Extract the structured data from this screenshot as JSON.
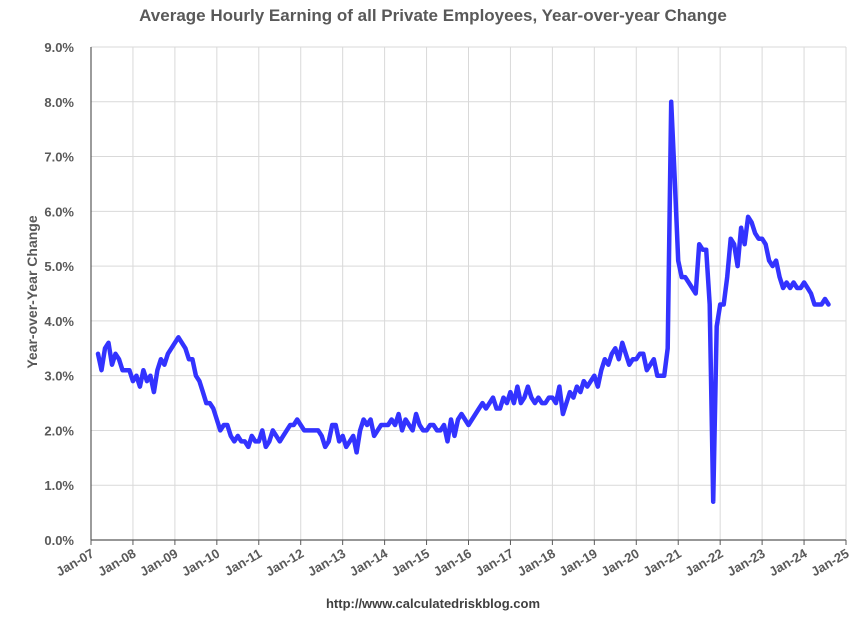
{
  "chart_data": {
    "type": "line",
    "title": "Average Hourly Earning of all Private Employees, Year-over-year Change",
    "ylabel": "Year-over-Year Change",
    "xlabel": "",
    "source": "http://www.calculatedriskblog.com",
    "x_ticks": [
      "Jan-07",
      "Jan-08",
      "Jan-09",
      "Jan-10",
      "Jan-11",
      "Jan-12",
      "Jan-13",
      "Jan-14",
      "Jan-15",
      "Jan-16",
      "Jan-17",
      "Jan-18",
      "Jan-19",
      "Jan-20",
      "Jan-21",
      "Jan-22",
      "Jan-23",
      "Jan-24",
      "Jan-25"
    ],
    "y_ticks": [
      "0.0%",
      "1.0%",
      "2.0%",
      "3.0%",
      "4.0%",
      "5.0%",
      "6.0%",
      "7.0%",
      "8.0%",
      "9.0%"
    ],
    "xlim": [
      "2007-01",
      "2025-01"
    ],
    "ylim": [
      0,
      9
    ],
    "grid": true,
    "line_color": "#3333ff",
    "series": [
      {
        "start": "2007-03",
        "frequency": "monthly",
        "values": [
          3.4,
          3.1,
          3.5,
          3.6,
          3.2,
          3.4,
          3.3,
          3.1,
          3.1,
          3.1,
          2.9,
          3.0,
          2.8,
          3.1,
          2.9,
          3.0,
          2.7,
          3.1,
          3.3,
          3.2,
          3.4,
          3.5,
          3.6,
          3.7,
          3.6,
          3.5,
          3.3,
          3.3,
          3.0,
          2.9,
          2.7,
          2.5,
          2.5,
          2.4,
          2.2,
          2.0,
          2.1,
          2.1,
          1.9,
          1.8,
          1.9,
          1.8,
          1.8,
          1.7,
          1.9,
          1.8,
          1.8,
          2.0,
          1.7,
          1.8,
          2.0,
          1.9,
          1.8,
          1.9,
          2.0,
          2.1,
          2.1,
          2.2,
          2.1,
          2.0,
          2.0,
          2.0,
          2.0,
          2.0,
          1.9,
          1.7,
          1.8,
          2.1,
          2.1,
          1.8,
          1.9,
          1.7,
          1.8,
          1.9,
          1.6,
          2.0,
          2.2,
          2.1,
          2.2,
          1.9,
          2.0,
          2.1,
          2.1,
          2.1,
          2.2,
          2.1,
          2.3,
          2.0,
          2.2,
          2.1,
          2.0,
          2.3,
          2.1,
          2.0,
          2.0,
          2.1,
          2.1,
          2.0,
          2.0,
          2.1,
          1.8,
          2.2,
          1.9,
          2.2,
          2.3,
          2.2,
          2.1,
          2.2,
          2.3,
          2.4,
          2.5,
          2.4,
          2.5,
          2.6,
          2.4,
          2.4,
          2.6,
          2.5,
          2.7,
          2.5,
          2.8,
          2.5,
          2.6,
          2.8,
          2.6,
          2.5,
          2.6,
          2.5,
          2.5,
          2.6,
          2.6,
          2.5,
          2.8,
          2.3,
          2.5,
          2.7,
          2.6,
          2.8,
          2.7,
          2.9,
          2.8,
          2.9,
          3.0,
          2.8,
          3.1,
          3.3,
          3.2,
          3.4,
          3.5,
          3.3,
          3.6,
          3.4,
          3.2,
          3.3,
          3.3,
          3.4,
          3.4,
          3.1,
          3.2,
          3.3,
          3.0,
          3.0,
          3.0,
          3.5,
          8.0,
          6.6,
          5.1,
          4.8,
          4.8,
          4.7,
          4.6,
          4.5,
          5.4,
          5.3,
          5.3,
          4.3,
          0.7,
          3.9,
          4.3,
          4.3,
          4.8,
          5.5,
          5.4,
          5.0,
          5.7,
          5.4,
          5.9,
          5.8,
          5.6,
          5.5,
          5.5,
          5.4,
          5.1,
          5.0,
          5.1,
          4.8,
          4.6,
          4.7,
          4.6,
          4.7,
          4.6,
          4.6,
          4.7,
          4.6,
          4.5,
          4.3,
          4.3,
          4.3,
          4.4,
          4.3
        ]
      }
    ]
  }
}
